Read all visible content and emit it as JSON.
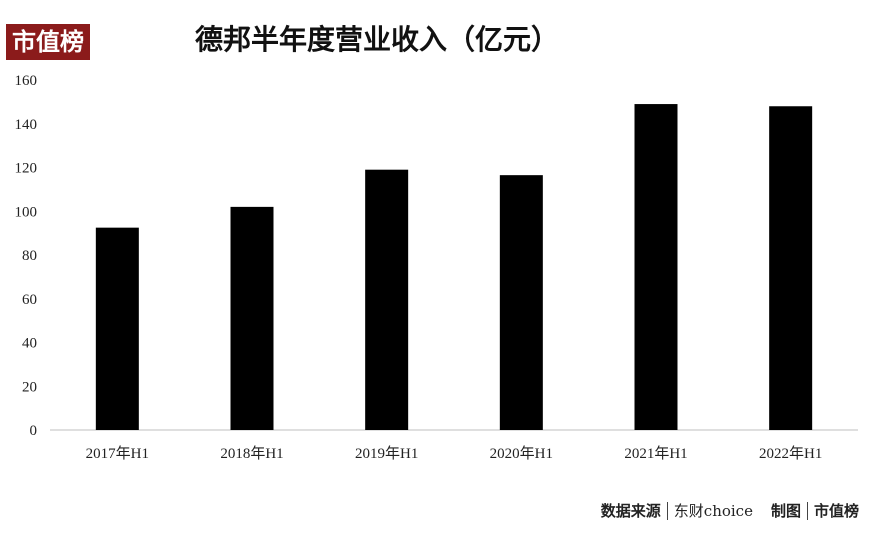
{
  "brand": {
    "logo_text": "市值榜"
  },
  "chart_data": {
    "type": "bar",
    "title": "德邦半年度营业收入（亿元）",
    "categories": [
      "2017年H1",
      "2018年H1",
      "2019年H1",
      "2020年H1",
      "2021年H1",
      "2022年H1"
    ],
    "values": [
      92.5,
      102,
      119,
      116.5,
      149,
      148
    ],
    "ylim": [
      0,
      160
    ],
    "yticks": [
      0,
      20,
      40,
      60,
      80,
      100,
      120,
      140,
      160
    ],
    "bar_color": "#000000",
    "grid": false,
    "legend": "none"
  },
  "footer": {
    "source_label": "数据来源",
    "source_value": "东财choice",
    "credit_label": "制图",
    "credit_value": "市值榜"
  }
}
